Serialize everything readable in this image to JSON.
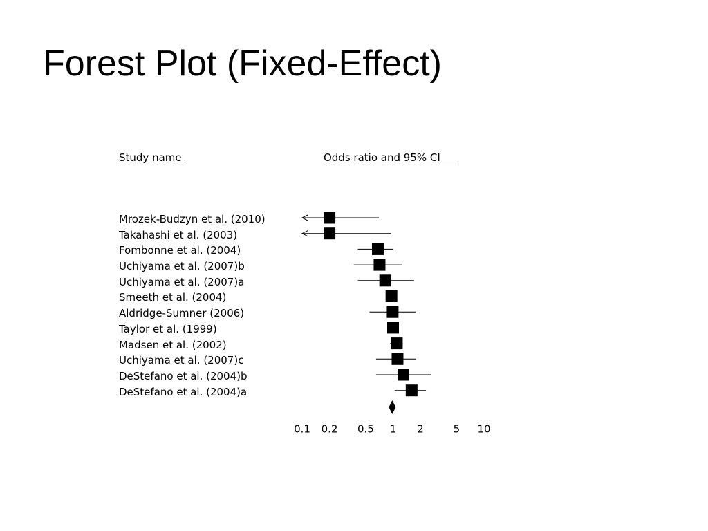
{
  "slide": {
    "title": "Forest Plot (Fixed-Effect)"
  },
  "headers": {
    "study": "Study name",
    "effect": "Odds ratio and 95% CI"
  },
  "chart_data": {
    "type": "forest",
    "title": "Forest Plot (Fixed-Effect)",
    "xlabel": "Odds ratio and 95% CI",
    "xscale": "log",
    "xlim": [
      0.1,
      10
    ],
    "x_ticks": [
      0.1,
      0.2,
      0.5,
      1,
      2,
      5,
      10
    ],
    "x_tick_labels": [
      "0.1",
      "0.2",
      "0.5",
      "1",
      "2",
      "5",
      "10"
    ],
    "studies": [
      {
        "name": "Mrozek-Budzyn et al. (2010)",
        "or": 0.2,
        "lower": 0.1,
        "upper": 0.7,
        "lower_truncated": true
      },
      {
        "name": "Takahashi et al. (2003)",
        "or": 0.2,
        "lower": 0.1,
        "upper": 0.95,
        "lower_truncated": true
      },
      {
        "name": "Fombonne et al. (2004)",
        "or": 0.68,
        "lower": 0.41,
        "upper": 1.01
      },
      {
        "name": "Uchiyama et al. (2007)b",
        "or": 0.71,
        "lower": 0.37,
        "upper": 1.26
      },
      {
        "name": "Uchiyama et al. (2007)a",
        "or": 0.82,
        "lower": 0.41,
        "upper": 1.7
      },
      {
        "name": "Smeeth et al. (2004)",
        "or": 0.96,
        "lower": 0.83,
        "upper": 1.11
      },
      {
        "name": "Aldridge-Sumner (2006)",
        "or": 0.99,
        "lower": 0.55,
        "upper": 1.8
      },
      {
        "name": "Taylor et al. (1999)",
        "or": 1.0,
        "lower": 0.94,
        "upper": 1.06
      },
      {
        "name": "Madsen et al. (2002)",
        "or": 1.1,
        "lower": 0.93,
        "upper": 1.28
      },
      {
        "name": "Uchiyama et al. (2007)c",
        "or": 1.12,
        "lower": 0.65,
        "upper": 1.8
      },
      {
        "name": "DeStefano et al. (2004)b",
        "or": 1.3,
        "lower": 0.65,
        "upper": 2.6
      },
      {
        "name": "DeStefano et al. (2004)a",
        "or": 1.6,
        "lower": 1.04,
        "upper": 2.3
      }
    ],
    "summary": {
      "or": 0.98,
      "lower": 0.94,
      "upper": 1.03
    },
    "grid": false
  }
}
